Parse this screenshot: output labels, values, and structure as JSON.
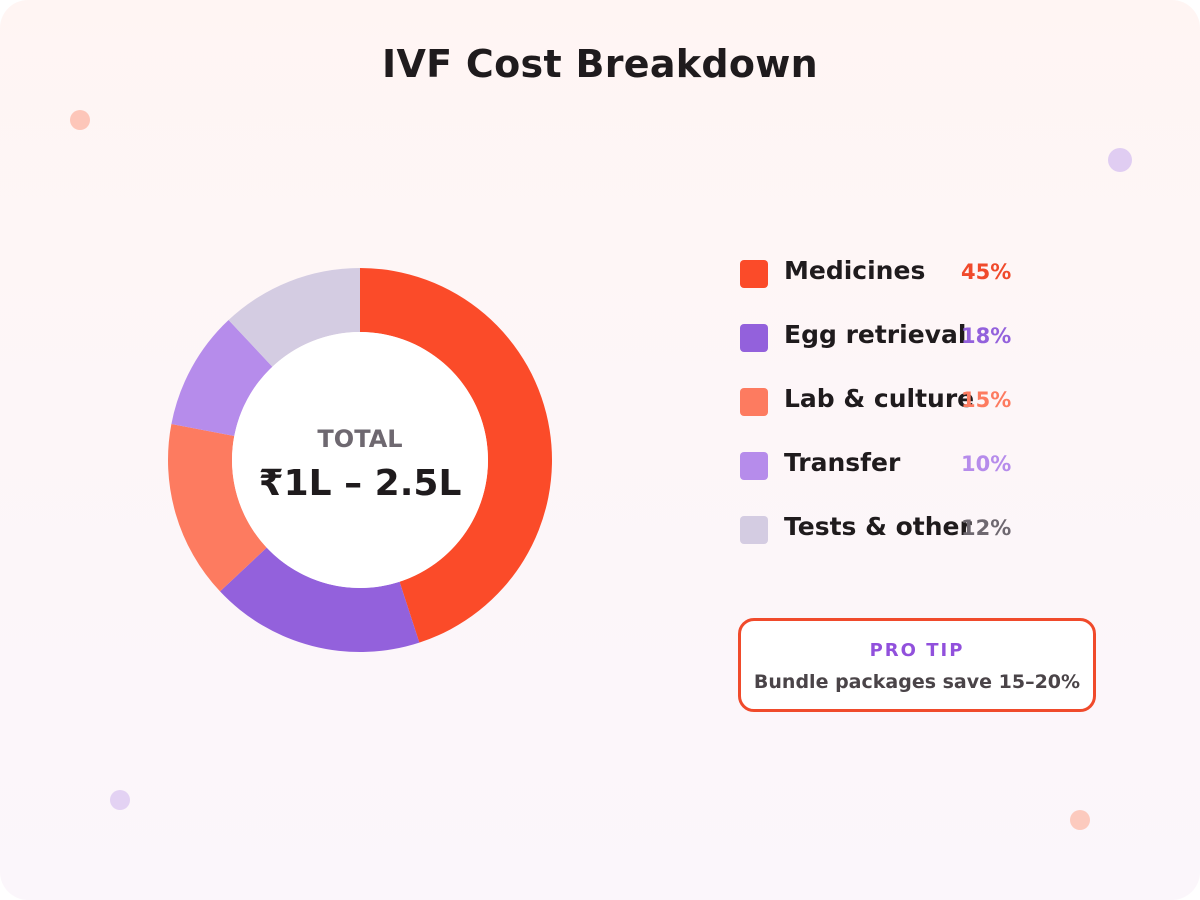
{
  "chart_data": {
    "type": "pie",
    "style": "donut",
    "title": "IVF Cost Breakdown",
    "center": {
      "label": "TOTAL",
      "value": "₹1L – 2.5L"
    },
    "categories": [
      "Medicines",
      "Egg retrieval",
      "Lab & culture",
      "Transfer",
      "Tests & other"
    ],
    "values": [
      45,
      18,
      15,
      10,
      12
    ],
    "value_labels": [
      "45%",
      "18%",
      "15%",
      "10%",
      "12%"
    ],
    "colors": [
      "#fb4b29",
      "#9361dc",
      "#fd7b60",
      "#b68ceb",
      "#d4cce2"
    ],
    "pct_text_colors": [
      "#f04a2b",
      "#9361dc",
      "#fd7b60",
      "#b68ceb",
      "#6e6870"
    ],
    "legend_placement": "right"
  },
  "tip": {
    "title": "PRO TIP",
    "text": "Bundle packages save 15–20%"
  },
  "colors": {
    "accent": "#f04a2b",
    "accent_secondary": "#9150dc"
  }
}
